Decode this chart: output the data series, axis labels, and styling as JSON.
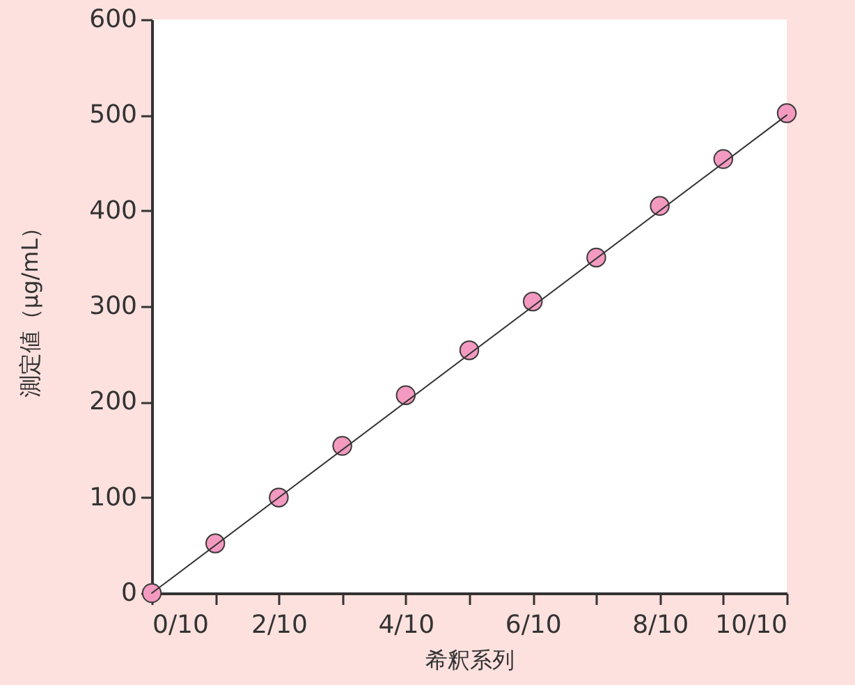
{
  "chart_data": {
    "type": "scatter",
    "xlabel": "希釈系列",
    "ylabel": "測定値（μg/mL）",
    "x": [
      0,
      0.1,
      0.2,
      0.3,
      0.4,
      0.5,
      0.6,
      0.7,
      0.8,
      0.9,
      1
    ],
    "series": [
      {
        "color": "#f49ac1",
        "marker": "circle",
        "values": [
          0,
          52,
          100,
          154,
          207,
          254,
          305,
          351,
          405,
          454,
          502
        ]
      },
      {
        "type": "line",
        "color": "#333333",
        "x": [
          0,
          1
        ],
        "values": [
          0,
          500
        ]
      }
    ],
    "xlim": [
      0,
      1
    ],
    "ylim": [
      0,
      600
    ],
    "xticks": [
      {
        "value": 0,
        "label": "0/10"
      },
      {
        "value": 0.1,
        "label": null
      },
      {
        "value": 0.2,
        "label": "2/10"
      },
      {
        "value": 0.3,
        "label": null
      },
      {
        "value": 0.4,
        "label": "4/10"
      },
      {
        "value": 0.5,
        "label": null
      },
      {
        "value": 0.6,
        "label": "6/10"
      },
      {
        "value": 0.7,
        "label": null
      },
      {
        "value": 0.8,
        "label": "8/10"
      },
      {
        "value": 0.9,
        "label": null
      },
      {
        "value": 1,
        "label": "10/10"
      }
    ],
    "yticks": [
      0,
      100,
      200,
      300,
      400,
      500,
      600
    ]
  }
}
